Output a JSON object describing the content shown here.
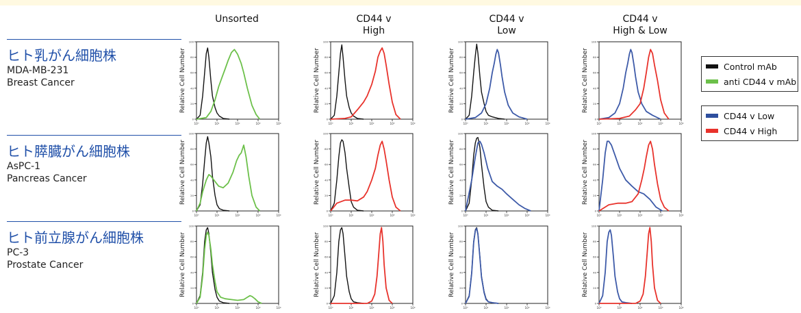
{
  "columns": [
    {
      "label": "Unsorted"
    },
    {
      "label": "CD44 v\nHigh"
    },
    {
      "label": "CD44 v\nLow"
    },
    {
      "label": "CD44 v\nHigh & Low"
    }
  ],
  "rows": [
    {
      "jp": "ヒト乳がん細胞株",
      "line1": "MDA-MB-231",
      "line2": "Breast Cancer"
    },
    {
      "jp": "ヒト膵臓がん細胞株",
      "line1": "AsPC-1",
      "line2": "Pancreas Cancer"
    },
    {
      "jp": "ヒト前立腺がん細胞株",
      "line1": "PC-3",
      "line2": "Prostate Cancer"
    }
  ],
  "legend": {
    "group1": [
      {
        "label": "Control mAb",
        "color": "#111111"
      },
      {
        "label": "anti CD44 v mAb",
        "color": "#6cc04a"
      }
    ],
    "group2": [
      {
        "label": "CD44 v Low",
        "color": "#2e4f9e"
      },
      {
        "label": "CD44 v High",
        "color": "#e8322b"
      }
    ]
  },
  "colors": {
    "control": "#111111",
    "anti": "#6cc04a",
    "low": "#3d5aa8",
    "high": "#e8322b",
    "top_band": "#fff9e1"
  },
  "chart_data": {
    "type": "line",
    "ylabel": "Relative Cell Number",
    "xscale": "log",
    "xlim": [
      1,
      10000
    ],
    "ylim": [
      0,
      100
    ],
    "yticks": [
      "100",
      "80",
      "60",
      "40",
      "20",
      "0"
    ],
    "xticks": [
      "10⁰",
      "10¹",
      "10²",
      "10³",
      "10⁴"
    ],
    "panels": [
      {
        "row": 0,
        "col": 0,
        "series": [
          {
            "name": "Control mAb",
            "kind": "control",
            "x": [
              1,
              1.5,
              2,
              2.5,
              3,
              3.5,
              4,
              5,
              6,
              8,
              10,
              13,
              20,
              40
            ],
            "y": [
              0,
              5,
              30,
              60,
              85,
              92,
              80,
              50,
              30,
              15,
              8,
              4,
              1,
              0
            ]
          },
          {
            "name": "anti CD44 v mAb",
            "kind": "anti",
            "x": [
              1,
              3,
              5,
              8,
              12,
              18,
              25,
              35,
              50,
              70,
              100,
              150,
              200,
              300,
              500,
              800,
              1200
            ],
            "y": [
              0,
              2,
              10,
              25,
              42,
              55,
              65,
              76,
              86,
              90,
              84,
              72,
              60,
              40,
              18,
              6,
              0
            ]
          }
        ]
      },
      {
        "row": 0,
        "col": 1,
        "series": [
          {
            "name": "Control mAb",
            "kind": "control",
            "x": [
              1,
              1.5,
              2,
              2.5,
              3,
              3.5,
              4,
              5,
              6,
              8,
              10,
              13,
              20,
              40
            ],
            "y": [
              0,
              5,
              30,
              60,
              85,
              96,
              80,
              50,
              30,
              15,
              8,
              4,
              1,
              0
            ]
          },
          {
            "name": "CD44 v High",
            "kind": "high",
            "x": [
              1,
              5,
              10,
              20,
              40,
              60,
              100,
              150,
              200,
              260,
              320,
              400,
              500,
              700,
              1000,
              1500,
              2500
            ],
            "y": [
              0,
              1,
              3,
              12,
              22,
              30,
              45,
              62,
              80,
              88,
              92,
              85,
              70,
              45,
              22,
              6,
              0
            ]
          }
        ]
      },
      {
        "row": 0,
        "col": 2,
        "series": [
          {
            "name": "Control mAb",
            "kind": "control",
            "x": [
              1,
              1.5,
              2,
              2.5,
              3,
              3.5,
              4,
              5,
              6,
              8,
              10,
              13,
              20,
              40,
              80
            ],
            "y": [
              0,
              5,
              30,
              60,
              82,
              97,
              85,
              55,
              35,
              20,
              10,
              5,
              3,
              1,
              0
            ]
          },
          {
            "name": "CD44 v Low",
            "kind": "low",
            "x": [
              1,
              3,
              6,
              10,
              15,
              20,
              25,
              30,
              35,
              40,
              50,
              60,
              80,
              120,
              200,
              400,
              1000
            ],
            "y": [
              0,
              2,
              8,
              20,
              40,
              60,
              72,
              84,
              90,
              86,
              70,
              55,
              35,
              18,
              8,
              3,
              0
            ]
          }
        ]
      },
      {
        "row": 0,
        "col": 3,
        "series": [
          {
            "name": "CD44 v Low",
            "kind": "low",
            "x": [
              1,
              3,
              6,
              10,
              15,
              20,
              25,
              30,
              35,
              40,
              50,
              60,
              80,
              120,
              200,
              400,
              1000
            ],
            "y": [
              0,
              2,
              8,
              20,
              40,
              60,
              72,
              84,
              90,
              86,
              70,
              55,
              35,
              20,
              10,
              5,
              0
            ]
          },
          {
            "name": "CD44 v High",
            "kind": "high",
            "x": [
              1,
              10,
              30,
              60,
              100,
              150,
              200,
              260,
              320,
              400,
              500,
              700,
              1000,
              1500,
              2500
            ],
            "y": [
              0,
              1,
              4,
              12,
              20,
              40,
              60,
              80,
              90,
              85,
              70,
              50,
              25,
              8,
              0
            ]
          }
        ]
      },
      {
        "row": 1,
        "col": 0,
        "series": [
          {
            "name": "Control mAb",
            "kind": "control",
            "x": [
              1,
              1.5,
              2,
              2.5,
              3,
              3.5,
              4,
              5,
              6,
              8,
              10,
              13,
              20,
              40
            ],
            "y": [
              0,
              8,
              35,
              65,
              88,
              96,
              88,
              70,
              45,
              20,
              8,
              3,
              1,
              0
            ]
          },
          {
            "name": "anti CD44 v mAb",
            "kind": "anti",
            "x": [
              1,
              1.5,
              2,
              3,
              4,
              5,
              8,
              12,
              20,
              35,
              60,
              90,
              120,
              150,
              200,
              260,
              350,
              500,
              800,
              1200
            ],
            "y": [
              0,
              10,
              25,
              40,
              47,
              45,
              38,
              32,
              30,
              36,
              50,
              65,
              72,
              75,
              85,
              70,
              45,
              20,
              5,
              0
            ]
          }
        ]
      },
      {
        "row": 1,
        "col": 1,
        "series": [
          {
            "name": "Control mAb",
            "kind": "control",
            "x": [
              1,
              1.5,
              2,
              2.5,
              3,
              3.5,
              4,
              5,
              6,
              8,
              10,
              13,
              20,
              40
            ],
            "y": [
              0,
              10,
              40,
              70,
              88,
              92,
              90,
              75,
              55,
              30,
              12,
              5,
              1,
              0
            ]
          },
          {
            "name": "CD44 v High",
            "kind": "high",
            "x": [
              1,
              2,
              5,
              10,
              20,
              40,
              60,
              100,
              150,
              200,
              260,
              320,
              400,
              500,
              700,
              1000,
              1500,
              2500
            ],
            "y": [
              0,
              10,
              14,
              14,
              13,
              18,
              25,
              40,
              55,
              72,
              85,
              90,
              80,
              65,
              40,
              18,
              5,
              0
            ]
          }
        ]
      },
      {
        "row": 1,
        "col": 2,
        "series": [
          {
            "name": "Control mAb",
            "kind": "control",
            "x": [
              1,
              1.5,
              2,
              2.5,
              3,
              3.5,
              4,
              5,
              6,
              8,
              10,
              13,
              20,
              40
            ],
            "y": [
              0,
              10,
              40,
              72,
              88,
              94,
              95,
              82,
              60,
              30,
              12,
              5,
              1,
              0
            ]
          },
          {
            "name": "CD44 v Low",
            "kind": "low",
            "x": [
              1,
              2,
              3,
              4,
              5,
              6,
              8,
              12,
              20,
              35,
              60,
              100,
              200,
              400,
              800,
              1500
            ],
            "y": [
              0,
              40,
              70,
              88,
              90,
              86,
              75,
              55,
              38,
              32,
              28,
              22,
              15,
              8,
              3,
              0
            ]
          }
        ]
      },
      {
        "row": 1,
        "col": 3,
        "series": [
          {
            "name": "CD44 v Low",
            "kind": "low",
            "x": [
              1,
              1.5,
              2,
              2.5,
              3,
              4,
              6,
              10,
              20,
              40,
              80,
              150,
              300,
              600,
              1200
            ],
            "y": [
              0,
              40,
              75,
              90,
              90,
              85,
              72,
              55,
              40,
              32,
              25,
              22,
              15,
              5,
              0
            ]
          },
          {
            "name": "CD44 v High",
            "kind": "high",
            "x": [
              1,
              3,
              8,
              20,
              40,
              80,
              120,
              160,
              200,
              260,
              320,
              400,
              500,
              700,
              1000,
              1500,
              2500
            ],
            "y": [
              0,
              8,
              10,
              10,
              12,
              22,
              40,
              55,
              70,
              85,
              90,
              80,
              60,
              35,
              15,
              5,
              0
            ]
          }
        ]
      },
      {
        "row": 2,
        "col": 0,
        "series": [
          {
            "name": "Control mAb",
            "kind": "control",
            "x": [
              1,
              1.5,
              2,
              2.5,
              3,
              3.5,
              4,
              5,
              6,
              8,
              10,
              13,
              20,
              40
            ],
            "y": [
              0,
              10,
              40,
              80,
              95,
              98,
              90,
              65,
              40,
              18,
              8,
              3,
              1,
              0
            ]
          },
          {
            "name": "anti CD44 v mAb",
            "kind": "anti",
            "x": [
              1,
              1.5,
              2,
              2.5,
              3,
              3.5,
              4,
              5,
              6,
              8,
              10,
              15,
              25,
              50,
              100,
              200,
              300,
              400,
              500,
              700,
              1000,
              1500
            ],
            "y": [
              0,
              8,
              35,
              70,
              88,
              92,
              88,
              70,
              50,
              28,
              15,
              8,
              6,
              5,
              4,
              5,
              8,
              10,
              9,
              6,
              2,
              0
            ]
          }
        ]
      },
      {
        "row": 2,
        "col": 1,
        "series": [
          {
            "name": "Control mAb",
            "kind": "control",
            "x": [
              1,
              1.5,
              2,
              2.5,
              3,
              3.5,
              4,
              5,
              6,
              8,
              10,
              13,
              20,
              40
            ],
            "y": [
              0,
              10,
              40,
              80,
              95,
              98,
              90,
              60,
              35,
              15,
              6,
              2,
              1,
              0
            ]
          },
          {
            "name": "CD44 v High",
            "kind": "high",
            "x": [
              1,
              60,
              100,
              140,
              180,
              220,
              260,
              300,
              350,
              400,
              500,
              700,
              1000
            ],
            "y": [
              0,
              0,
              3,
              12,
              35,
              65,
              90,
              98,
              80,
              50,
              20,
              4,
              0
            ]
          }
        ]
      },
      {
        "row": 2,
        "col": 2,
        "series": [
          {
            "name": "Control mAb",
            "kind": "control",
            "x": [
              1,
              1.5,
              2,
              2.5,
              3,
              3.5,
              4,
              5,
              6,
              8,
              10,
              13,
              20,
              40
            ],
            "y": [
              0,
              10,
              40,
              80,
              95,
              98,
              90,
              60,
              35,
              15,
              6,
              2,
              1,
              0
            ]
          },
          {
            "name": "CD44 v Low",
            "kind": "low",
            "x": [
              1,
              1.5,
              2,
              2.5,
              3,
              3.5,
              4,
              5,
              6,
              8,
              10,
              13,
              20,
              40
            ],
            "y": [
              0,
              9,
              39,
              79,
              94,
              97,
              89,
              59,
              34,
              14,
              5,
              2,
              1,
              0
            ]
          }
        ]
      },
      {
        "row": 2,
        "col": 3,
        "series": [
          {
            "name": "CD44 v Low",
            "kind": "low",
            "x": [
              1,
              1.5,
              2,
              2.5,
              3,
              3.5,
              4,
              5,
              6,
              8,
              10,
              13,
              20,
              40
            ],
            "y": [
              0,
              10,
              40,
              80,
              92,
              95,
              88,
              60,
              35,
              15,
              6,
              2,
              1,
              0
            ]
          },
          {
            "name": "CD44 v High",
            "kind": "high",
            "x": [
              1,
              60,
              100,
              140,
              180,
              220,
              260,
              300,
              350,
              400,
              500,
              700,
              1000
            ],
            "y": [
              0,
              0,
              3,
              12,
              35,
              65,
              90,
              98,
              80,
              50,
              20,
              4,
              0
            ]
          }
        ]
      }
    ]
  }
}
